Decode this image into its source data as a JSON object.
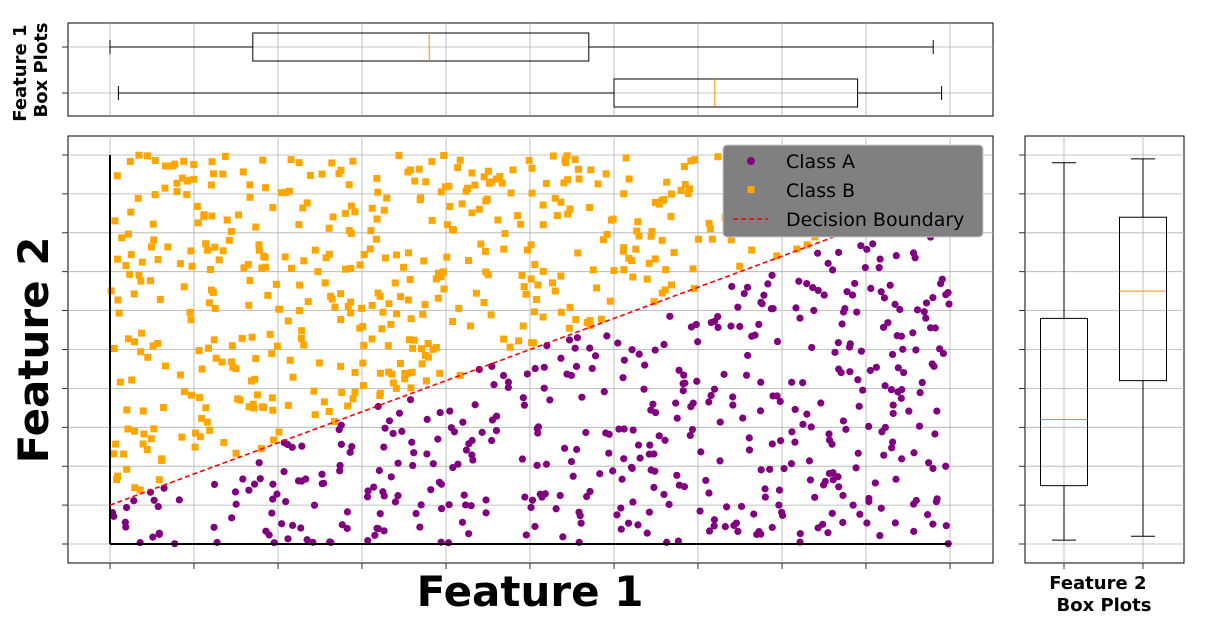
{
  "colors": {
    "class_a": "#800080",
    "class_b": "#ffa500",
    "boundary": "#ff0000",
    "median": "#ff8c00",
    "grid": "#b0b0b0",
    "legend_bg": "#808080"
  },
  "chart_data": [
    {
      "type": "scatter",
      "xlabel": "Feature 1",
      "ylabel": "Feature 2",
      "xlim": [
        -0.05,
        1.05
      ],
      "ylim": [
        -0.05,
        1.05
      ],
      "grid": true,
      "legend_position": "top-right",
      "legend": [
        "Class A",
        "Class B",
        "Decision Boundary"
      ],
      "decision_boundary": {
        "x": [
          0.0,
          1.0
        ],
        "y": [
          0.1,
          0.9
        ]
      },
      "series": [
        {
          "name": "Class A",
          "marker": "circle",
          "color": "#800080",
          "n_points": 490,
          "rule": "y < 0.1 + 0.8x",
          "x_range": [
            0,
            1
          ],
          "y_range": [
            0,
            1
          ]
        },
        {
          "name": "Class B",
          "marker": "square",
          "color": "#ffa500",
          "n_points": 510,
          "rule": "y >= 0.1 + 0.8x",
          "x_range": [
            0,
            1
          ],
          "y_range": [
            0,
            1
          ]
        }
      ]
    },
    {
      "type": "boxplot",
      "orientation": "horizontal",
      "ylabel": "Feature 1\nBox Plots",
      "boxes": [
        {
          "class": "Class A",
          "whisker_low": 0.01,
          "q1": 0.6,
          "median": 0.72,
          "q3": 0.89,
          "whisker_high": 0.99
        },
        {
          "class": "Class B",
          "whisker_low": 0.0,
          "q1": 0.17,
          "median": 0.38,
          "q3": 0.57,
          "whisker_high": 0.98
        }
      ]
    },
    {
      "type": "boxplot",
      "orientation": "vertical",
      "xlabel": "Feature 2\nBox Plots",
      "boxes": [
        {
          "class": "Class A",
          "whisker_low": 0.01,
          "q1": 0.15,
          "median": 0.32,
          "q3": 0.58,
          "whisker_high": 0.98
        },
        {
          "class": "Class B",
          "whisker_low": 0.02,
          "q1": 0.42,
          "median": 0.65,
          "q3": 0.84,
          "whisker_high": 0.99
        }
      ]
    }
  ]
}
